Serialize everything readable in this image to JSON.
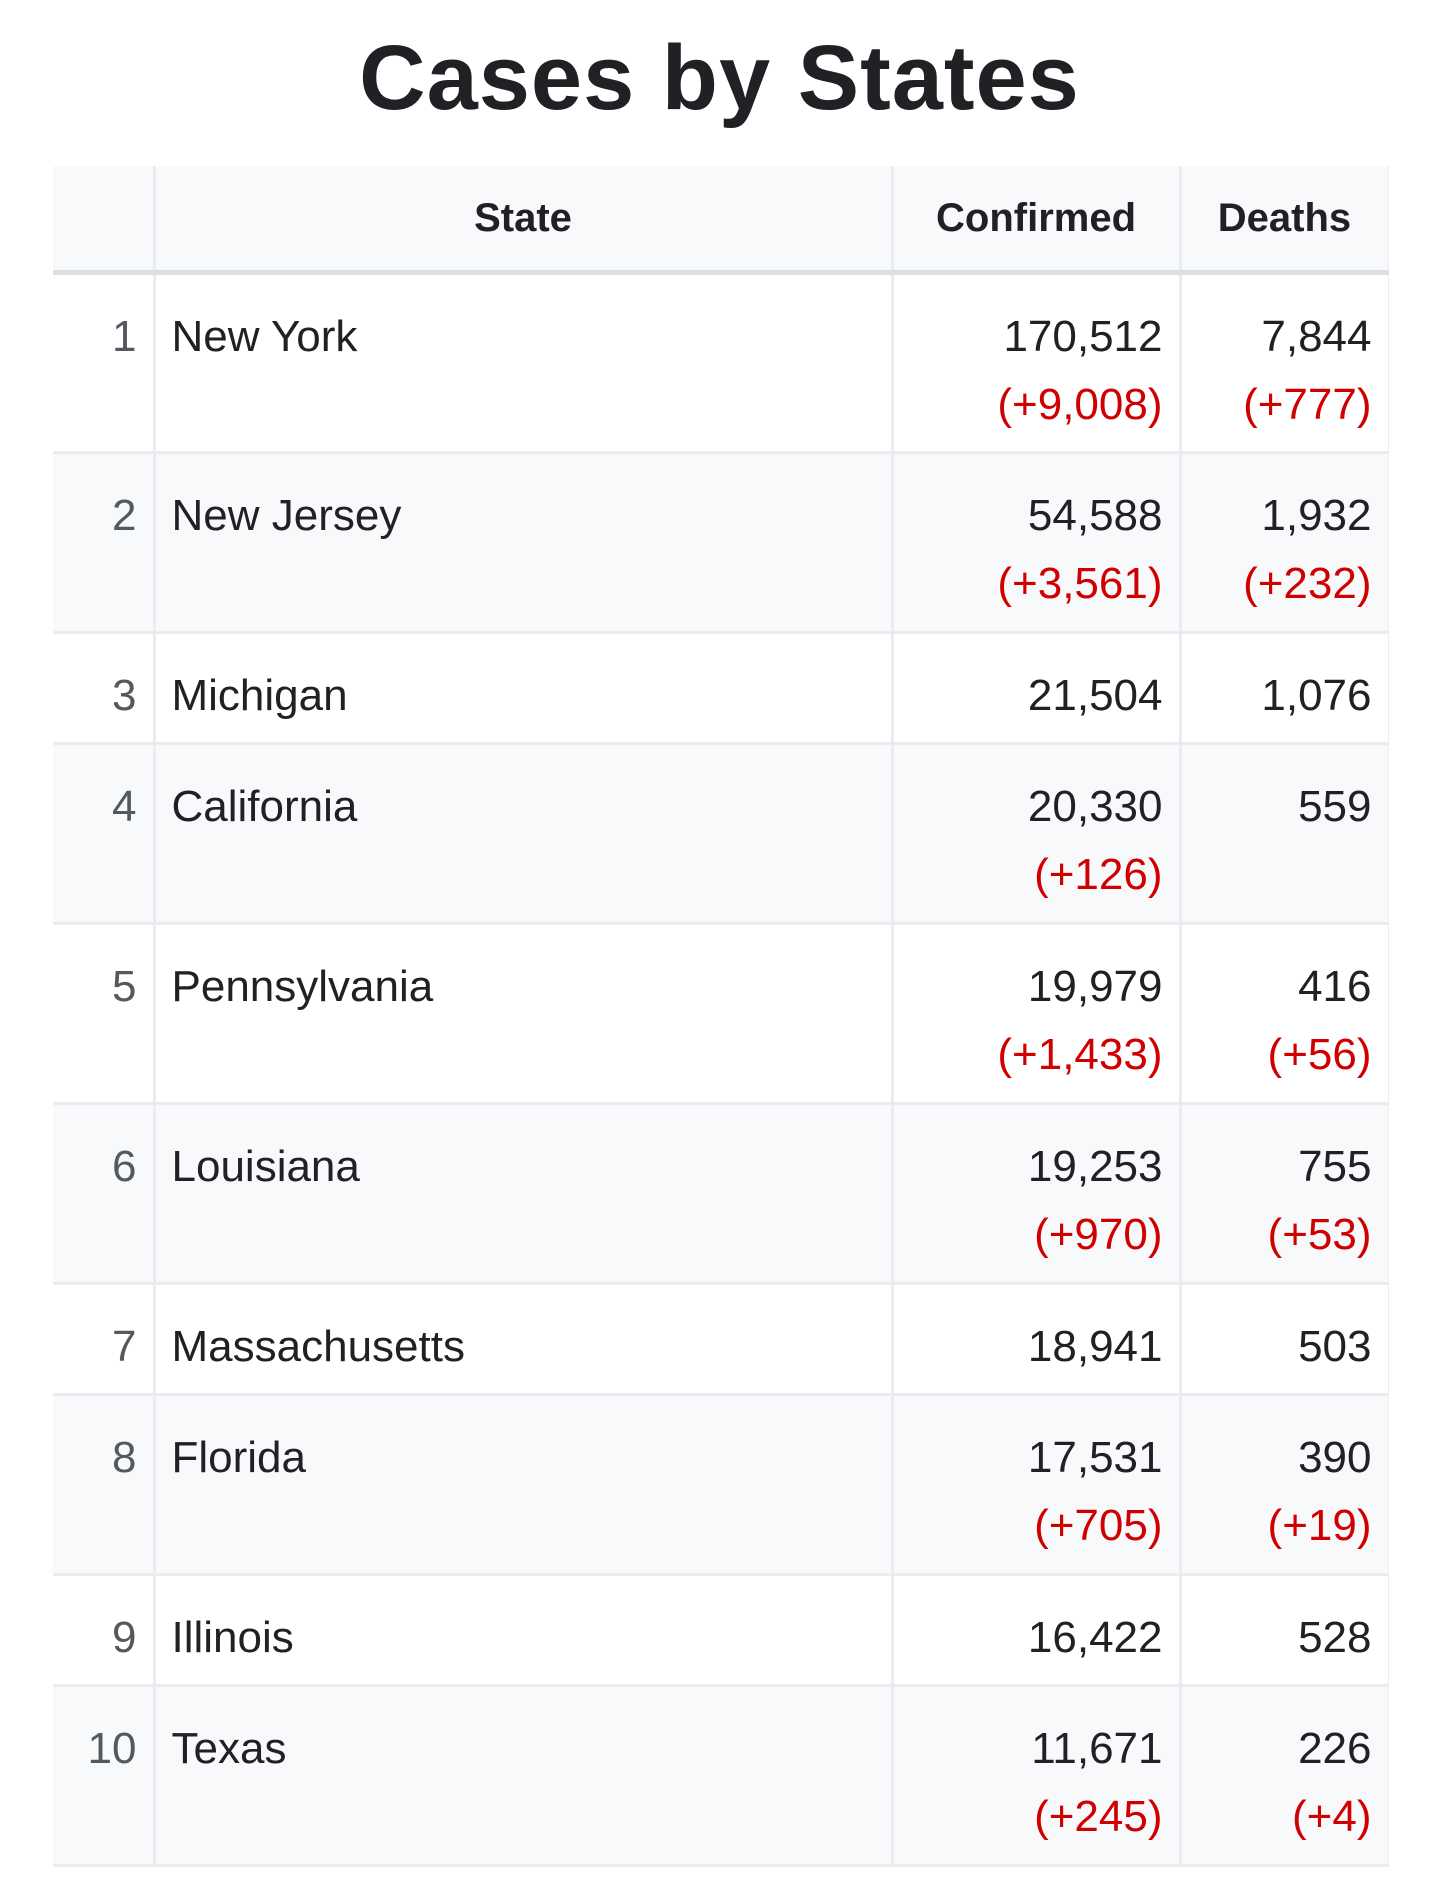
{
  "title": "Cases by States",
  "columns": {
    "rank": "",
    "state": "State",
    "confirmed": "Confirmed",
    "deaths": "Deaths"
  },
  "rows": [
    {
      "rank": "1",
      "state": "New York",
      "confirmed": "170,512",
      "confirmed_delta": "(+9,008)",
      "deaths": "7,844",
      "deaths_delta": "(+777)"
    },
    {
      "rank": "2",
      "state": "New Jersey",
      "confirmed": "54,588",
      "confirmed_delta": "(+3,561)",
      "deaths": "1,932",
      "deaths_delta": "(+232)"
    },
    {
      "rank": "3",
      "state": "Michigan",
      "confirmed": "21,504",
      "confirmed_delta": "",
      "deaths": "1,076",
      "deaths_delta": ""
    },
    {
      "rank": "4",
      "state": "California",
      "confirmed": "20,330",
      "confirmed_delta": "(+126)",
      "deaths": "559",
      "deaths_delta": ""
    },
    {
      "rank": "5",
      "state": "Pennsylvania",
      "confirmed": "19,979",
      "confirmed_delta": "(+1,433)",
      "deaths": "416",
      "deaths_delta": "(+56)"
    },
    {
      "rank": "6",
      "state": "Louisiana",
      "confirmed": "19,253",
      "confirmed_delta": "(+970)",
      "deaths": "755",
      "deaths_delta": "(+53)"
    },
    {
      "rank": "7",
      "state": "Massachusetts",
      "confirmed": "18,941",
      "confirmed_delta": "",
      "deaths": "503",
      "deaths_delta": ""
    },
    {
      "rank": "8",
      "state": "Florida",
      "confirmed": "17,531",
      "confirmed_delta": "(+705)",
      "deaths": "390",
      "deaths_delta": "(+19)"
    },
    {
      "rank": "9",
      "state": "Illinois",
      "confirmed": "16,422",
      "confirmed_delta": "",
      "deaths": "528",
      "deaths_delta": ""
    },
    {
      "rank": "10",
      "state": "Texas",
      "confirmed": "11,671",
      "confirmed_delta": "(+245)",
      "deaths": "226",
      "deaths_delta": "(+4)"
    }
  ],
  "colors": {
    "delta": "#d00000",
    "text": "#202124",
    "rank": "#54595d",
    "header_bg": "#f8f9fa",
    "border": "#eaecf0"
  }
}
